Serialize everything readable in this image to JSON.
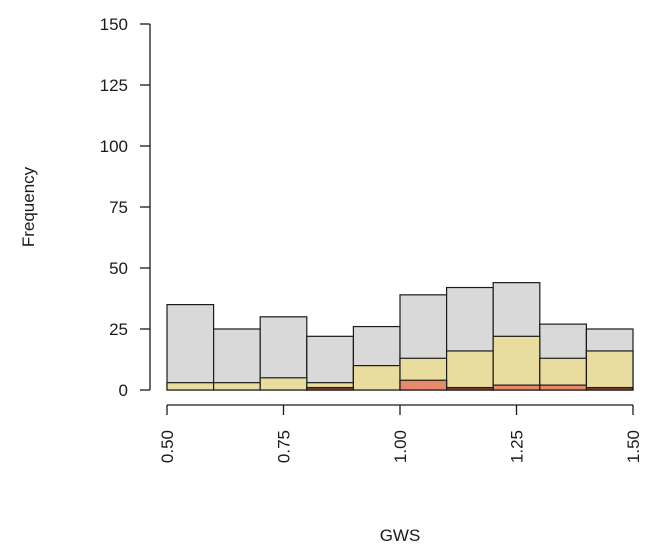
{
  "chart_data": {
    "type": "bar",
    "title": "",
    "xlabel": "GWS",
    "ylabel": "Frequency",
    "xlim": [
      0.5,
      1.5
    ],
    "ylim": [
      0,
      150
    ],
    "x_ticks": [
      "0.50",
      "0.75",
      "1.00",
      "1.25",
      "1.50"
    ],
    "y_ticks": [
      "0",
      "25",
      "50",
      "75",
      "100",
      "125",
      "150"
    ],
    "bin_edges": [
      0.5,
      0.6,
      0.7,
      0.8,
      0.9,
      1.0,
      1.1,
      1.2,
      1.3,
      1.4,
      1.5
    ],
    "legend": "none",
    "grid": false,
    "series": [
      {
        "color": "#d9d9d9",
        "values": [
          35,
          25,
          30,
          22,
          26,
          39,
          42,
          44,
          27,
          25
        ]
      },
      {
        "color": "#e8dc9e",
        "values": [
          3,
          3,
          5,
          3,
          10,
          13,
          16,
          22,
          13,
          16
        ]
      },
      {
        "color": "#e8896b",
        "values": [
          0,
          0,
          0,
          0,
          0,
          4,
          0,
          2,
          2,
          0
        ]
      },
      {
        "color": "#8b4a2a",
        "values": [
          0,
          0,
          0,
          1,
          0,
          0,
          1,
          0,
          0,
          1
        ]
      }
    ]
  }
}
